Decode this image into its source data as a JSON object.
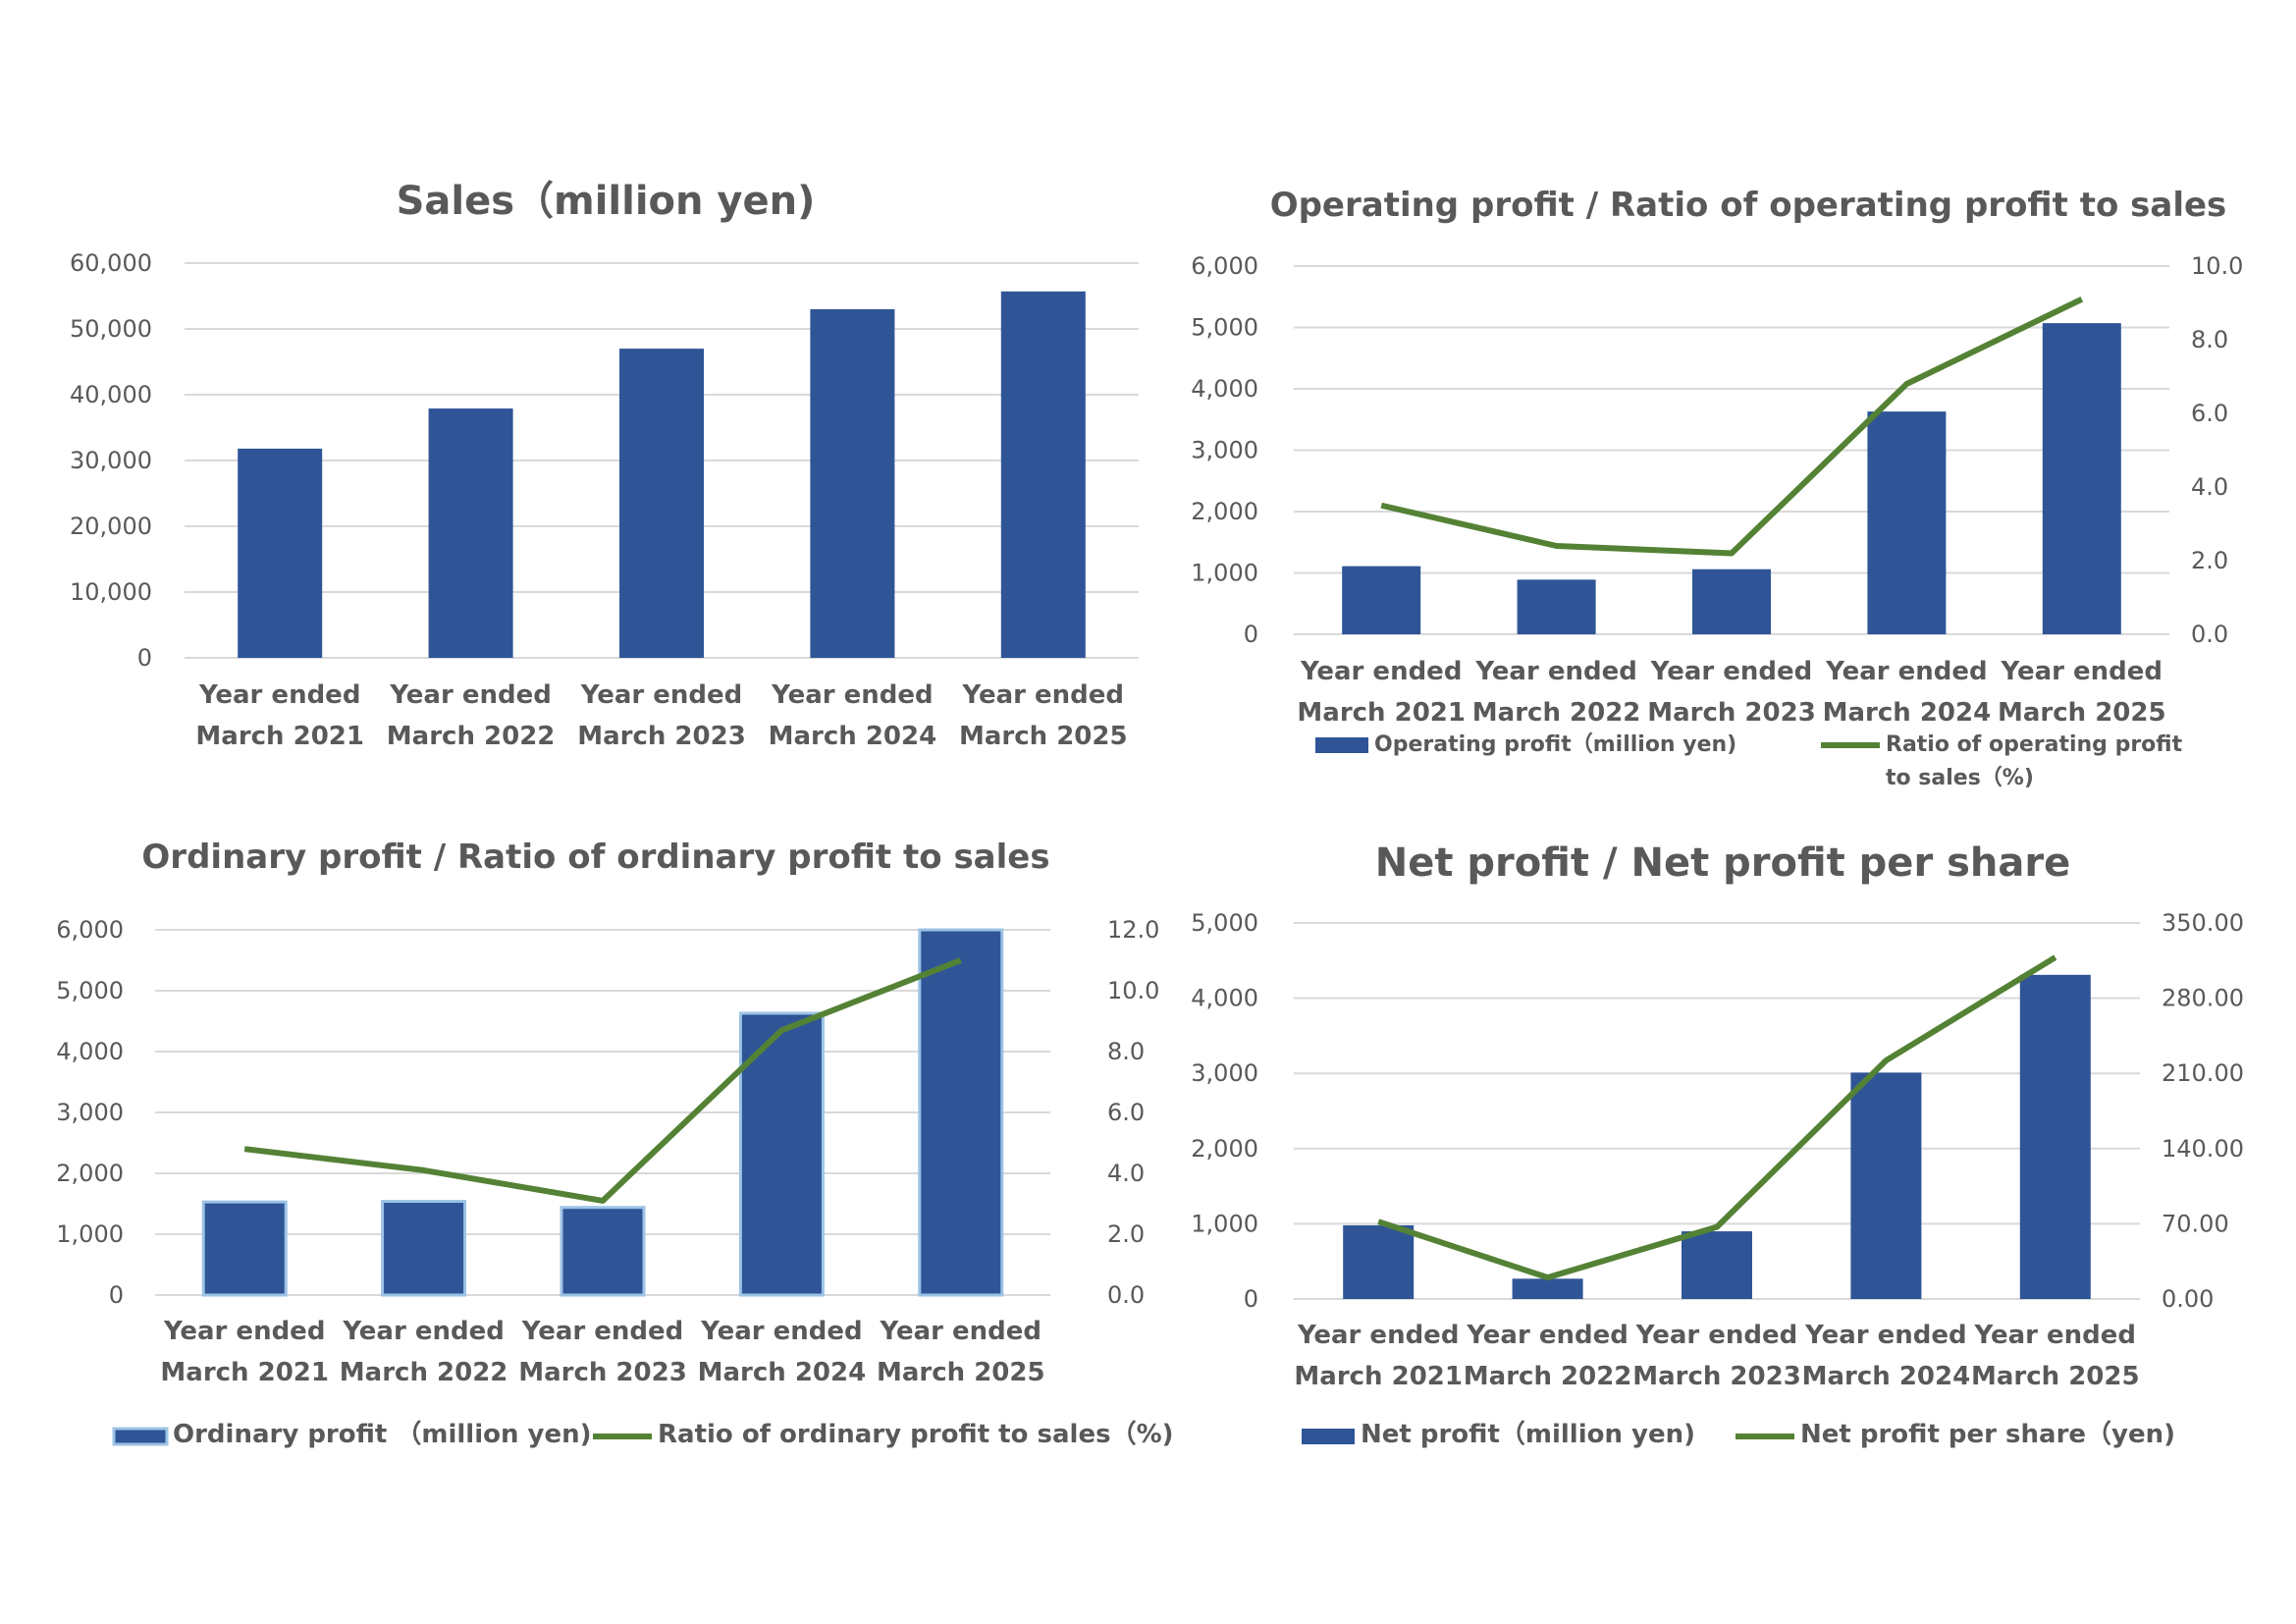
{
  "chart_data": [
    {
      "id": "sales",
      "type": "bar",
      "title": "Sales（million yen)",
      "categories": [
        [
          "Year ended",
          "March 2021"
        ],
        [
          "Year ended",
          "March 2022"
        ],
        [
          "Year ended",
          "March 2023"
        ],
        [
          "Year ended",
          "March 2024"
        ],
        [
          "Year ended",
          "March 2025"
        ]
      ],
      "series": [
        {
          "name": "Sales (million yen)",
          "type": "bar",
          "axis": "left",
          "values": [
            31800,
            37900,
            47000,
            53000,
            55700
          ]
        }
      ],
      "ylim": [
        0,
        60000
      ],
      "y_ticks": [
        "0",
        "10,000",
        "20,000",
        "30,000",
        "40,000",
        "50,000",
        "60,000"
      ],
      "legend": "none"
    },
    {
      "id": "operating",
      "type": "bar+line",
      "title": "Operating profit / Ratio of operating profit to sales",
      "categories": [
        [
          "Year ended",
          "March 2021"
        ],
        [
          "Year ended",
          "March 2022"
        ],
        [
          "Year ended",
          "March 2023"
        ],
        [
          "Year ended",
          "March 2024"
        ],
        [
          "Year ended",
          "March 2025"
        ]
      ],
      "series": [
        {
          "name": "Operating profit（million yen)",
          "type": "bar",
          "axis": "left",
          "values": [
            1110,
            890,
            1060,
            3630,
            5070
          ]
        },
        {
          "name_lines": [
            "Ratio of operating profit",
            "to sales（%)"
          ],
          "name": "Ratio of operating profit to sales（%)",
          "type": "line",
          "axis": "right",
          "values": [
            3.5,
            2.4,
            2.2,
            6.8,
            9.1
          ]
        }
      ],
      "ylim": [
        0,
        6000
      ],
      "y_ticks": [
        "0",
        "1,000",
        "2,000",
        "3,000",
        "4,000",
        "5,000",
        "6,000"
      ],
      "y2lim": [
        0,
        10
      ],
      "y2_ticks": [
        "0.0",
        "2.0",
        "4.0",
        "6.0",
        "8.0",
        "10.0"
      ],
      "legend": "bottom"
    },
    {
      "id": "ordinary",
      "type": "bar+line",
      "title": "Ordinary profit / Ratio of ordinary profit to sales",
      "categories": [
        [
          "Year ended",
          "March 2021"
        ],
        [
          "Year ended",
          "March 2022"
        ],
        [
          "Year ended",
          "March 2023"
        ],
        [
          "Year ended",
          "March 2024"
        ],
        [
          "Year ended",
          "March 2025"
        ]
      ],
      "series": [
        {
          "name": "Ordinary profit （million yen)",
          "type": "bar",
          "axis": "left",
          "values": [
            1530,
            1540,
            1440,
            4630,
            6000
          ]
        },
        {
          "name": "Ratio of ordinary profit to sales（%)",
          "type": "line",
          "axis": "right",
          "values": [
            4.8,
            4.1,
            3.1,
            8.7,
            11.0
          ]
        }
      ],
      "ylim": [
        0,
        6000
      ],
      "y_ticks": [
        "0",
        "1,000",
        "2,000",
        "3,000",
        "4,000",
        "5,000",
        "6,000"
      ],
      "y2lim": [
        0,
        12
      ],
      "y2_ticks": [
        "0.0",
        "2.0",
        "4.0",
        "6.0",
        "8.0",
        "10.0",
        "12.0"
      ],
      "legend": "bottom"
    },
    {
      "id": "net",
      "type": "bar+line",
      "title": "Net profit / Net profit per share",
      "categories": [
        [
          "Year ended",
          "March 2021"
        ],
        [
          "Year ended",
          "March 2022"
        ],
        [
          "Year ended",
          "March 2023"
        ],
        [
          "Year ended",
          "March 2024"
        ],
        [
          "Year ended",
          "March 2025"
        ]
      ],
      "series": [
        {
          "name": "Net profit（million yen)",
          "type": "bar",
          "axis": "left",
          "values": [
            980,
            270,
            900,
            3010,
            4310
          ]
        },
        {
          "name": "Net profit per share（yen)",
          "type": "line",
          "axis": "right",
          "values": [
            72,
            20,
            67,
            222,
            318
          ]
        }
      ],
      "ylim": [
        0,
        5000
      ],
      "y_ticks": [
        "0",
        "1,000",
        "2,000",
        "3,000",
        "4,000",
        "5,000"
      ],
      "y2lim": [
        0,
        350
      ],
      "y2_ticks": [
        "0.00",
        "70.00",
        "140.00",
        "210.00",
        "280.00",
        "350.00"
      ],
      "legend": "bottom"
    }
  ],
  "colors": {
    "bar": "#2f5597",
    "line": "#548235",
    "text": "#595959",
    "grid": "#d9d9d9"
  }
}
